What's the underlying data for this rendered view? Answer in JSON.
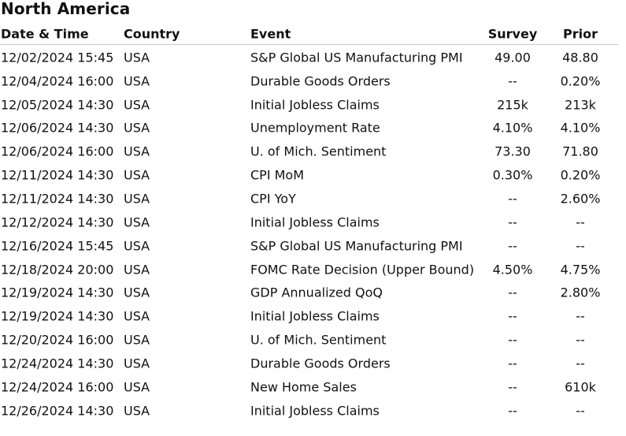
{
  "region_title": "North America",
  "columns": {
    "date": "Date & Time",
    "country": "Country",
    "event": "Event",
    "survey": "Survey",
    "prior": "Prior"
  },
  "rows": [
    {
      "date": "12/02/2024 15:45",
      "country": "USA",
      "event": "S&P Global US Manufacturing PMI",
      "survey": "49.00",
      "prior": "48.80"
    },
    {
      "date": "12/04/2024 16:00",
      "country": "USA",
      "event": "Durable Goods Orders",
      "survey": "--",
      "prior": "0.20%"
    },
    {
      "date": "12/05/2024 14:30",
      "country": "USA",
      "event": "Initial Jobless Claims",
      "survey": "215k",
      "prior": "213k"
    },
    {
      "date": "12/06/2024 14:30",
      "country": "USA",
      "event": "Unemployment Rate",
      "survey": "4.10%",
      "prior": "4.10%"
    },
    {
      "date": "12/06/2024 16:00",
      "country": "USA",
      "event": "U. of Mich. Sentiment",
      "survey": "73.30",
      "prior": "71.80"
    },
    {
      "date": "12/11/2024 14:30",
      "country": "USA",
      "event": "CPI MoM",
      "survey": "0.30%",
      "prior": "0.20%"
    },
    {
      "date": "12/11/2024 14:30",
      "country": "USA",
      "event": "CPI YoY",
      "survey": "--",
      "prior": "2.60%"
    },
    {
      "date": "12/12/2024 14:30",
      "country": "USA",
      "event": "Initial Jobless Claims",
      "survey": "--",
      "prior": "--"
    },
    {
      "date": "12/16/2024 15:45",
      "country": "USA",
      "event": "S&P Global US Manufacturing PMI",
      "survey": "--",
      "prior": "--"
    },
    {
      "date": "12/18/2024 20:00",
      "country": "USA",
      "event": "FOMC Rate Decision (Upper Bound)",
      "survey": "4.50%",
      "prior": "4.75%"
    },
    {
      "date": "12/19/2024 14:30",
      "country": "USA",
      "event": "GDP Annualized QoQ",
      "survey": "--",
      "prior": "2.80%"
    },
    {
      "date": "12/19/2024 14:30",
      "country": "USA",
      "event": "Initial Jobless Claims",
      "survey": "--",
      "prior": "--"
    },
    {
      "date": "12/20/2024 16:00",
      "country": "USA",
      "event": "U. of Mich. Sentiment",
      "survey": "--",
      "prior": "--"
    },
    {
      "date": "12/24/2024 14:30",
      "country": "USA",
      "event": "Durable Goods Orders",
      "survey": "--",
      "prior": "--"
    },
    {
      "date": "12/24/2024 16:00",
      "country": "USA",
      "event": "New Home Sales",
      "survey": "--",
      "prior": "610k"
    },
    {
      "date": "12/26/2024 14:30",
      "country": "USA",
      "event": "Initial Jobless Claims",
      "survey": "--",
      "prior": "--"
    }
  ]
}
